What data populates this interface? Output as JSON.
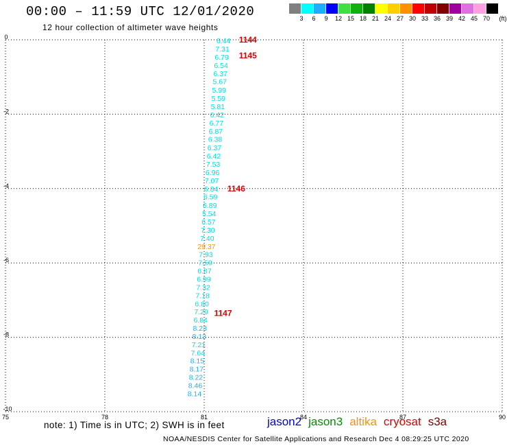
{
  "header": {
    "title": "00:00 – 11:59 UTC 12/01/2020",
    "subtitle": "12 hour collection of altimeter wave heights"
  },
  "colorbar": {
    "colors": [
      "#808080",
      "#00ffff",
      "#1ab0ff",
      "#0000ff",
      "#40e040",
      "#10b010",
      "#008000",
      "#ffff00",
      "#ffd000",
      "#ff9000",
      "#ff0000",
      "#c00000",
      "#800000",
      "#a000a0",
      "#e070e0",
      "#ffa0e0",
      "#000000"
    ],
    "labels": [
      "3",
      "6",
      "9",
      "12",
      "15",
      "18",
      "21",
      "24",
      "27",
      "30",
      "33",
      "36",
      "39",
      "42",
      "45",
      "70",
      "(ft)"
    ]
  },
  "chart_data": {
    "type": "scatter",
    "title": "00:00 – 11:59 UTC 12/01/2020",
    "subtitle": "12 hour collection of altimeter wave heights",
    "xlim": [
      75,
      90
    ],
    "ylim": [
      -10,
      0
    ],
    "xticks": [
      "75",
      "78",
      "81",
      "84",
      "87",
      "90"
    ],
    "yticks": [
      "0",
      "-2",
      "-4",
      "-6",
      "-8",
      "-10"
    ],
    "grid": true,
    "points": [
      {
        "x": 81.58,
        "y": -0.02,
        "label": "6.44",
        "color": "#00dede"
      },
      {
        "x": 81.55,
        "y": -0.24,
        "label": "7.31",
        "color": "#00dede"
      },
      {
        "x": 81.53,
        "y": -0.46,
        "label": "6.79",
        "color": "#00dede"
      },
      {
        "x": 81.51,
        "y": -0.68,
        "label": "6.54",
        "color": "#00dede"
      },
      {
        "x": 81.49,
        "y": -0.9,
        "label": "6.37",
        "color": "#00dede"
      },
      {
        "x": 81.47,
        "y": -1.12,
        "label": "5.67",
        "color": "#00dede"
      },
      {
        "x": 81.45,
        "y": -1.35,
        "label": "5.99",
        "color": "#00dede"
      },
      {
        "x": 81.43,
        "y": -1.57,
        "label": "5.59",
        "color": "#00dede"
      },
      {
        "x": 81.41,
        "y": -1.79,
        "label": "5.81",
        "color": "#00dede"
      },
      {
        "x": 81.39,
        "y": -2.01,
        "label": "6.42",
        "color": "#00dede"
      },
      {
        "x": 81.37,
        "y": -2.23,
        "label": "6.77",
        "color": "#00dede"
      },
      {
        "x": 81.35,
        "y": -2.45,
        "label": "6.87",
        "color": "#00dede"
      },
      {
        "x": 81.33,
        "y": -2.67,
        "label": "6.38",
        "color": "#00dede"
      },
      {
        "x": 81.31,
        "y": -2.9,
        "label": "6.37",
        "color": "#00dede"
      },
      {
        "x": 81.29,
        "y": -3.12,
        "label": "6.42",
        "color": "#00dede"
      },
      {
        "x": 81.27,
        "y": -3.34,
        "label": "7.53",
        "color": "#00dede"
      },
      {
        "x": 81.25,
        "y": -3.56,
        "label": "6.96",
        "color": "#00dede"
      },
      {
        "x": 81.23,
        "y": -3.78,
        "label": "7.07",
        "color": "#00dede"
      },
      {
        "x": 81.21,
        "y": -4.0,
        "label": "6.84",
        "color": "#00dede"
      },
      {
        "x": 81.19,
        "y": -4.22,
        "label": "6.59",
        "color": "#00dede"
      },
      {
        "x": 81.17,
        "y": -4.45,
        "label": "6.89",
        "color": "#00dede"
      },
      {
        "x": 81.15,
        "y": -4.67,
        "label": "5.54",
        "color": "#00dede"
      },
      {
        "x": 81.13,
        "y": -4.89,
        "label": "6.57",
        "color": "#00dede"
      },
      {
        "x": 81.11,
        "y": -5.11,
        "label": "7.30",
        "color": "#00dede"
      },
      {
        "x": 81.09,
        "y": -5.33,
        "label": "7.40",
        "color": "#00dede"
      },
      {
        "x": 81.07,
        "y": -5.55,
        "label": "29.37",
        "color": "#ff9000"
      },
      {
        "x": 81.05,
        "y": -5.77,
        "label": "7.93",
        "color": "#00dede"
      },
      {
        "x": 81.03,
        "y": -5.99,
        "label": "7.59",
        "color": "#00dede"
      },
      {
        "x": 81.01,
        "y": -6.21,
        "label": "6.87",
        "color": "#00dede"
      },
      {
        "x": 80.99,
        "y": -6.43,
        "label": "6.99",
        "color": "#00dede"
      },
      {
        "x": 80.97,
        "y": -6.65,
        "label": "7.32",
        "color": "#00dede"
      },
      {
        "x": 80.95,
        "y": -6.87,
        "label": "7.18",
        "color": "#00dede"
      },
      {
        "x": 80.93,
        "y": -7.09,
        "label": "6.80",
        "color": "#00dede"
      },
      {
        "x": 80.91,
        "y": -7.31,
        "label": "7.29",
        "color": "#00dede"
      },
      {
        "x": 80.89,
        "y": -7.53,
        "label": "6.84",
        "color": "#00dede"
      },
      {
        "x": 80.87,
        "y": -7.75,
        "label": "8.23",
        "color": "#1ab0ff"
      },
      {
        "x": 80.85,
        "y": -7.97,
        "label": "8.13",
        "color": "#1ab0ff"
      },
      {
        "x": 80.83,
        "y": -8.19,
        "label": "7.21",
        "color": "#00dede"
      },
      {
        "x": 80.81,
        "y": -8.41,
        "label": "7.64",
        "color": "#00dede"
      },
      {
        "x": 80.79,
        "y": -8.63,
        "label": "8.15",
        "color": "#1ab0ff"
      },
      {
        "x": 80.77,
        "y": -8.85,
        "label": "8.17",
        "color": "#1ab0ff"
      },
      {
        "x": 80.75,
        "y": -9.07,
        "label": "8.22",
        "color": "#1ab0ff"
      },
      {
        "x": 80.73,
        "y": -9.29,
        "label": "8.46",
        "color": "#1ab0ff"
      },
      {
        "x": 80.71,
        "y": -9.51,
        "label": "8.14",
        "color": "#1ab0ff"
      }
    ],
    "passes": [
      {
        "label": "1144",
        "x": 82.05,
        "y": 0.0,
        "color": "#e00000"
      },
      {
        "label": "1145",
        "x": 82.05,
        "y": -0.42,
        "color": "#e00000"
      },
      {
        "label": "1146",
        "x": 81.7,
        "y": -4.0,
        "color": "#e00000"
      },
      {
        "label": "1147",
        "x": 81.3,
        "y": -7.35,
        "color": "#e00000"
      }
    ]
  },
  "note": "note: 1) Time is in UTC; 2) SWH is in feet",
  "sources": [
    {
      "name": "jason2",
      "color": "#0000e0"
    },
    {
      "name": "jason3",
      "color": "#009000"
    },
    {
      "name": "altika",
      "color": "#ff9000"
    },
    {
      "name": "cryosat",
      "color": "#e00000"
    },
    {
      "name": "s3a",
      "color": "#800000"
    }
  ],
  "footer": "NOAA/NESDIS Center for Satellite Applications and Research    Dec  4 08:29:25 UTC 2020"
}
